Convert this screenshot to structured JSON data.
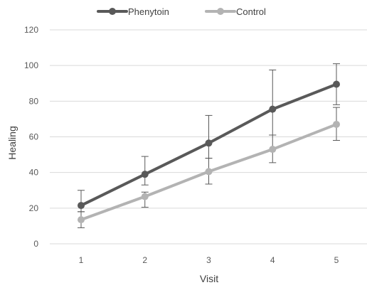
{
  "chart_data": {
    "type": "line",
    "title": "",
    "xlabel": "Visit",
    "ylabel": "Healing",
    "x": [
      1,
      2,
      3,
      4,
      5
    ],
    "categories": [
      "1",
      "2",
      "3",
      "4",
      "5"
    ],
    "ylim": [
      0,
      120
    ],
    "yticks": [
      0,
      20,
      40,
      60,
      80,
      100,
      120
    ],
    "grid": true,
    "legend": "top-left",
    "series": [
      {
        "name": "Phenytoin",
        "color": "#595959",
        "values": [
          21.5,
          39,
          56.5,
          75.5,
          89.5
        ],
        "error_upper": [
          30,
          49,
          72,
          97.5,
          101
        ],
        "error_lower": [
          18,
          33,
          48,
          61,
          78
        ]
      },
      {
        "name": "Control",
        "color": "#b3b3b3",
        "values": [
          13.5,
          26.5,
          40.5,
          53,
          67
        ],
        "error_upper": [
          18,
          29,
          48,
          61,
          76.5
        ],
        "error_lower": [
          9,
          20.5,
          33.5,
          45.5,
          58
        ]
      }
    ]
  }
}
